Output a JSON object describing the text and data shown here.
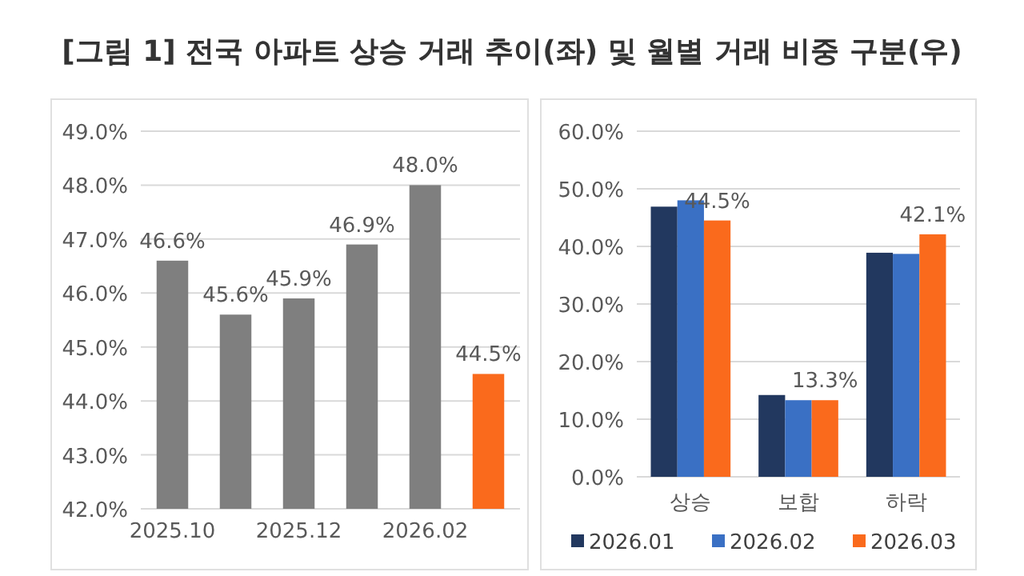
{
  "chart_data": [
    {
      "type": "bar",
      "title": "[그림 1] 전국 아파트 상승 거래 추이(좌) 및 월별 거래 비중 구분(우)",
      "categories": [
        "2025.10",
        null,
        "2025.12",
        null,
        "2026.02",
        null
      ],
      "values": [
        46.6,
        45.6,
        45.9,
        46.9,
        48.0,
        44.5
      ],
      "colors": [
        "#7f7f7f",
        "#7f7f7f",
        "#7f7f7f",
        "#7f7f7f",
        "#7f7f7f",
        "#fa6a1c"
      ],
      "value_labels": [
        "46.6%",
        "45.6%",
        "45.9%",
        "46.9%",
        "48.0%",
        "44.5%"
      ],
      "ylim": [
        42,
        49
      ],
      "yticks": [
        {
          "value": 42,
          "label": "42.0%"
        },
        {
          "value": 43,
          "label": "43.0%"
        },
        {
          "value": 44,
          "label": "44.0%"
        },
        {
          "value": 45,
          "label": "45.0%"
        },
        {
          "value": 46,
          "label": "46.0%"
        },
        {
          "value": 47,
          "label": "47.0%"
        },
        {
          "value": 48,
          "label": "48.0%"
        },
        {
          "value": 49,
          "label": "49.0%"
        }
      ],
      "grid": "y"
    },
    {
      "type": "bar",
      "categories": [
        "상승",
        "보합",
        "하락"
      ],
      "series": [
        {
          "name": "2026.01",
          "color": "#22385f",
          "values": [
            46.9,
            14.2,
            38.9
          ]
        },
        {
          "name": "2026.02",
          "color": "#3a70c4",
          "values": [
            48.0,
            13.3,
            38.7
          ]
        },
        {
          "name": "2026.03",
          "color": "#fa6a1c",
          "values": [
            44.5,
            13.3,
            42.1
          ],
          "value_labels": [
            "44.5%",
            "13.3%",
            "42.1%"
          ]
        }
      ],
      "ylim": [
        0,
        60
      ],
      "yticks": [
        {
          "value": 0,
          "label": "0.0%"
        },
        {
          "value": 10,
          "label": "10.0%"
        },
        {
          "value": 20,
          "label": "20.0%"
        },
        {
          "value": 30,
          "label": "30.0%"
        },
        {
          "value": 40,
          "label": "40.0%"
        },
        {
          "value": 50,
          "label": "50.0%"
        },
        {
          "value": 60,
          "label": "60.0%"
        }
      ],
      "grid": "y",
      "legend": "bottom"
    }
  ]
}
